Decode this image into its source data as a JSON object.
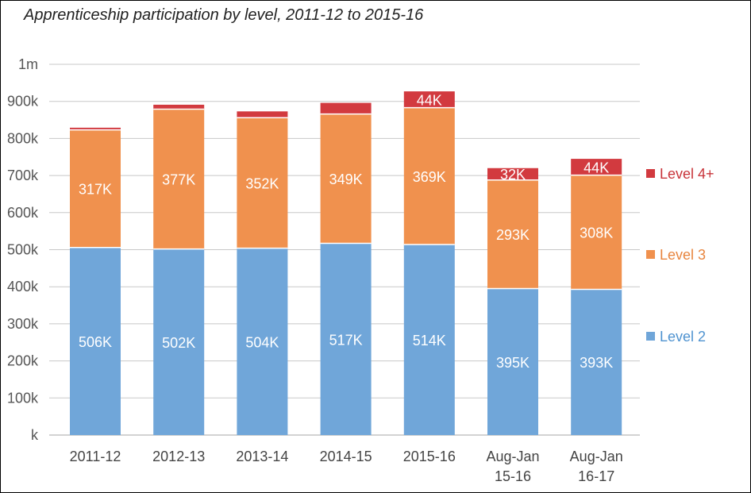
{
  "title": "Apprenticeship participation by level, 2011-12 to 2015-16",
  "chart_data": {
    "type": "bar",
    "stacked": true,
    "title": "Apprenticeship participation by level, 2011-12 to 2015-16",
    "categories": [
      [
        "2011-12"
      ],
      [
        "2012-13"
      ],
      [
        "2013-14"
      ],
      [
        "2014-15"
      ],
      [
        "2015-16"
      ],
      [
        "Aug-Jan",
        "15-16"
      ],
      [
        "Aug-Jan",
        "16-17"
      ]
    ],
    "series": [
      {
        "name": "Level 2",
        "color": "#70A6D9",
        "legend_color": "#4F93D0",
        "values": [
          506,
          502,
          504,
          517,
          514,
          395,
          393
        ],
        "labels": [
          "506K",
          "502K",
          "504K",
          "517K",
          "514K",
          "395K",
          "393K"
        ]
      },
      {
        "name": "Level 3",
        "color": "#F0914E",
        "legend_color": "#E8853F",
        "values": [
          317,
          377,
          352,
          349,
          369,
          293,
          308
        ],
        "labels": [
          "317K",
          "377K",
          "352K",
          "349K",
          "369K",
          "293K",
          "308K"
        ]
      },
      {
        "name": "Level 4+",
        "color": "#D23A3F",
        "legend_color": "#C8343A",
        "values": [
          6,
          12,
          17,
          30,
          44,
          32,
          44
        ],
        "labels": [
          "",
          "",
          "",
          "",
          "44K",
          "32K",
          "44K"
        ]
      }
    ],
    "y_unit": "thousands",
    "ylim": [
      0,
      1000
    ],
    "yticks": [
      0,
      100,
      200,
      300,
      400,
      500,
      600,
      700,
      800,
      900,
      1000
    ],
    "ytick_labels": [
      "k",
      "100k",
      "200k",
      "300k",
      "400k",
      "500k",
      "600k",
      "700k",
      "800k",
      "900k",
      "1m"
    ],
    "grid": true,
    "legend": "right"
  }
}
